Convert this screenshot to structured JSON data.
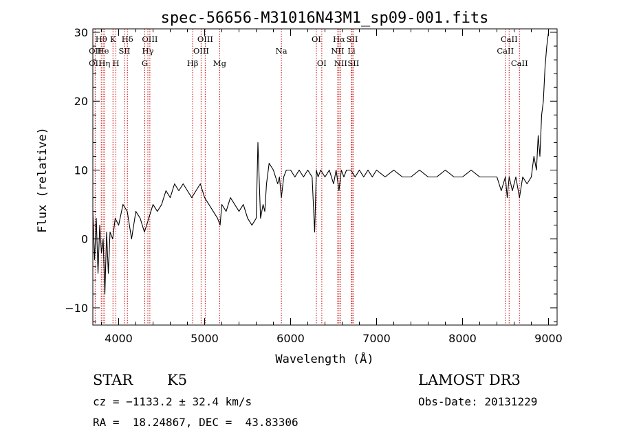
{
  "chart_data": {
    "type": "line",
    "title": "spec-56656-M31016N43M1_sp09-001.fits",
    "xlabel": "Wavelength (Å)",
    "ylabel": "Flux (relative)",
    "xlim": [
      3700,
      9100
    ],
    "ylim": [
      -12.5,
      30.5
    ],
    "xticks": [
      4000,
      5000,
      6000,
      7000,
      8000,
      9000
    ],
    "xtick_labels": [
      "4000",
      "5000",
      "6000",
      "7000",
      "8000",
      "9000"
    ],
    "yticks": [
      -10,
      0,
      10,
      20,
      30
    ],
    "ytick_labels": [
      "−10",
      "0",
      "10",
      "20",
      "30"
    ],
    "line_color": "#000000",
    "marker_color": "#cc0000",
    "series": [
      {
        "x": [
          3700,
          3720,
          3740,
          3760,
          3780,
          3800,
          3820,
          3840,
          3860,
          3880,
          3900,
          3930,
          3960,
          4000,
          4050,
          4100,
          4150,
          4200,
          4250,
          4300,
          4350,
          4400,
          4450,
          4500,
          4550,
          4600,
          4650,
          4700,
          4750,
          4800,
          4850,
          4900,
          4950,
          5000,
          5050,
          5100,
          5150,
          5180,
          5200,
          5250,
          5300,
          5350,
          5400,
          5450,
          5500,
          5550,
          5600,
          5620,
          5650,
          5680,
          5700,
          5720,
          5750,
          5800,
          5850,
          5870,
          5893,
          5920,
          5950,
          6000,
          6050,
          6100,
          6150,
          6200,
          6250,
          6280,
          6300,
          6320,
          6350,
          6400,
          6450,
          6500,
          6530,
          6563,
          6590,
          6620,
          6650,
          6700,
          6750,
          6800,
          6850,
          6900,
          6950,
          7000,
          7100,
          7200,
          7300,
          7400,
          7500,
          7600,
          7700,
          7800,
          7900,
          8000,
          8100,
          8200,
          8300,
          8400,
          8450,
          8498,
          8520,
          8542,
          8580,
          8620,
          8662,
          8700,
          8750,
          8800,
          8830,
          8860,
          8880,
          8900,
          8920,
          8940,
          8960,
          8980,
          9000
        ],
        "y": [
          4,
          -3,
          3,
          -5,
          2,
          -2,
          0,
          -8,
          1,
          -5,
          1,
          0,
          3,
          2,
          5,
          4,
          0,
          4,
          3,
          1,
          3,
          5,
          4,
          5,
          7,
          6,
          8,
          7,
          8,
          7,
          6,
          7,
          8,
          6,
          5,
          4,
          3,
          2,
          5,
          4,
          6,
          5,
          4,
          5,
          3,
          2,
          3,
          14,
          3,
          5,
          4,
          8,
          11,
          10,
          8,
          9,
          6,
          9,
          10,
          10,
          9,
          10,
          9,
          10,
          9,
          1,
          10,
          9,
          10,
          9,
          10,
          8,
          10,
          7,
          10,
          9,
          10,
          10,
          9,
          10,
          9,
          10,
          9,
          10,
          9,
          10,
          9,
          9,
          10,
          9,
          9,
          10,
          9,
          9,
          10,
          9,
          9,
          9,
          7,
          9,
          6,
          9,
          7,
          9,
          6,
          9,
          8,
          9,
          12,
          10,
          15,
          12,
          18,
          20,
          25,
          28,
          30
        ]
      }
    ],
    "line_markers": [
      {
        "label": "Hθ",
        "x": 3798,
        "row": 1
      },
      {
        "label": "OII",
        "x": 3727,
        "row": 2
      },
      {
        "label": "OII",
        "x": 3727,
        "row": 3
      },
      {
        "label": "He",
        "x": 3820,
        "row": 2
      },
      {
        "label": "Hη",
        "x": 3835,
        "row": 3
      },
      {
        "label": "K",
        "x": 3934,
        "row": 1
      },
      {
        "label": "SII",
        "x": 4068,
        "row": 2
      },
      {
        "label": "H",
        "x": 3968,
        "row": 3
      },
      {
        "label": "Hδ",
        "x": 4102,
        "row": 1
      },
      {
        "label": "OIII",
        "x": 4363,
        "row": 1
      },
      {
        "label": "Hγ",
        "x": 4340,
        "row": 2
      },
      {
        "label": "G",
        "x": 4304,
        "row": 3
      },
      {
        "label": "OIII",
        "x": 5007,
        "row": 1
      },
      {
        "label": "OIII",
        "x": 4959,
        "row": 2
      },
      {
        "label": "Hβ",
        "x": 4861,
        "row": 3
      },
      {
        "label": "Mg",
        "x": 5175,
        "row": 3
      },
      {
        "label": "Na",
        "x": 5893,
        "row": 2
      },
      {
        "label": "OI",
        "x": 6300,
        "row": 1
      },
      {
        "label": "OI",
        "x": 6363,
        "row": 3
      },
      {
        "label": "Hα",
        "x": 6563,
        "row": 1
      },
      {
        "label": "NII",
        "x": 6548,
        "row": 2
      },
      {
        "label": "NII",
        "x": 6583,
        "row": 3
      },
      {
        "label": "SII",
        "x": 6716,
        "row": 1
      },
      {
        "label": "Li",
        "x": 6708,
        "row": 2
      },
      {
        "label": "SII",
        "x": 6731,
        "row": 3
      },
      {
        "label": "CaII",
        "x": 8542,
        "row": 1
      },
      {
        "label": "CaII",
        "x": 8498,
        "row": 2
      },
      {
        "label": "CaII",
        "x": 8662,
        "row": 3
      }
    ]
  },
  "info": {
    "class_label": "STAR",
    "subclass": "K5",
    "survey": "LAMOST DR3",
    "cz_text": "cz = −1133.2 ± 32.4 km/s",
    "obs_date": "Obs-Date: 20131229",
    "coords": "RA =  18.24867, DEC =  43.83306"
  }
}
